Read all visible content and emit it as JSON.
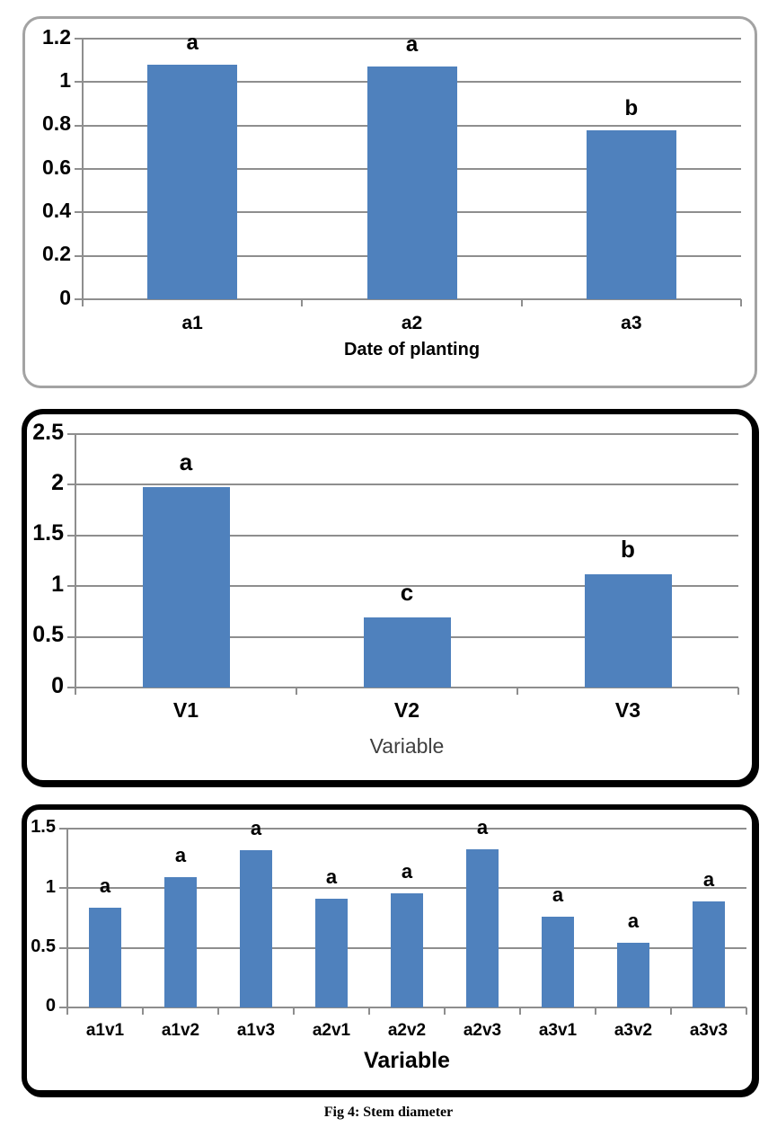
{
  "page": {
    "caption": "Fig 4: Stem diameter"
  },
  "colors": {
    "bar_fill": "#4f81bd",
    "gridline": "#8e8e8e",
    "axis": "#8e8e8e",
    "label_text": "#000000",
    "panel1_border": "#a3a3a3",
    "panel23_border": "#000000",
    "chart2_title_color": "#3f3f3f"
  },
  "chart_data": [
    {
      "type": "bar",
      "title": "",
      "xlabel": "Date of planting",
      "ylabel": "",
      "categories": [
        "a1",
        "a2",
        "a3"
      ],
      "values": [
        1.08,
        1.07,
        0.78
      ],
      "bar_letters": [
        "a",
        "a",
        "b"
      ],
      "ylim": [
        0,
        1.2
      ],
      "yticks": [
        0,
        0.2,
        0.4,
        0.6,
        0.8,
        1,
        1.2
      ],
      "ytick_labels": [
        "0",
        "0.2",
        "0.4",
        "0.6",
        "0.8",
        "1",
        "1.2"
      ],
      "grid": true,
      "legend": false
    },
    {
      "type": "bar",
      "title": "",
      "xlabel": "Variable",
      "ylabel": "",
      "categories": [
        "V1",
        "V2",
        "V3"
      ],
      "values": [
        1.98,
        0.69,
        1.12
      ],
      "bar_letters": [
        "a",
        "c",
        "b"
      ],
      "ylim": [
        0,
        2.5
      ],
      "yticks": [
        0,
        0.5,
        1,
        1.5,
        2,
        2.5
      ],
      "ytick_labels": [
        "0",
        "0.5",
        "1",
        "1.5",
        "2",
        "2.5"
      ],
      "grid": true,
      "legend": false
    },
    {
      "type": "bar",
      "title": "",
      "xlabel": "Variable",
      "ylabel": "",
      "categories": [
        "a1v1",
        "a1v2",
        "a1v3",
        "a2v1",
        "a2v2",
        "a2v3",
        "a3v1",
        "a3v2",
        "a3v3"
      ],
      "values": [
        0.84,
        1.09,
        1.32,
        0.91,
        0.96,
        1.33,
        0.76,
        0.54,
        0.89
      ],
      "bar_letters": [
        "a",
        "a",
        "a",
        "a",
        "a",
        "a",
        "a",
        "a",
        "a"
      ],
      "ylim": [
        0,
        1.5
      ],
      "yticks": [
        0,
        0.5,
        1,
        1.5
      ],
      "ytick_labels": [
        "0",
        "0.5",
        "1",
        "1.5"
      ],
      "grid": true,
      "legend": false
    }
  ]
}
